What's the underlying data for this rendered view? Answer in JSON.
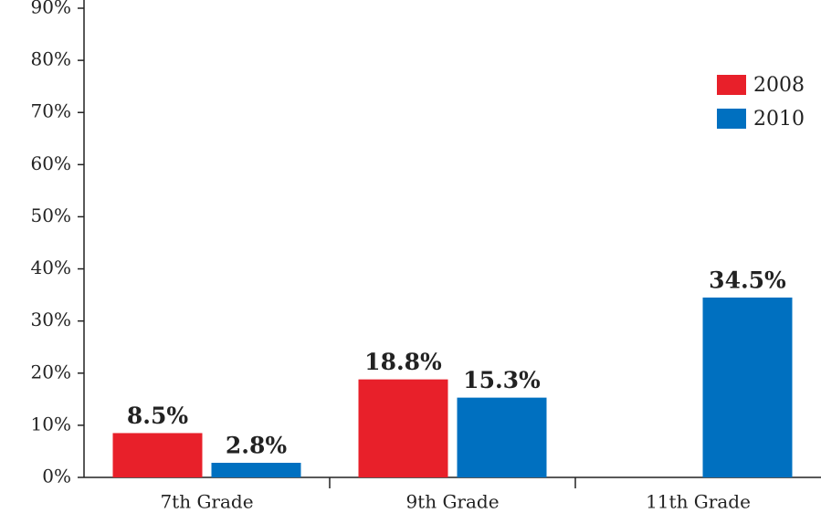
{
  "chart_data": {
    "type": "bar",
    "categories": [
      "7th Grade",
      "9th Grade",
      "11th Grade"
    ],
    "series": [
      {
        "name": "2008",
        "color": "#e8202a",
        "values": [
          8.5,
          18.8,
          null
        ],
        "value_labels": [
          "8.5%",
          "18.8%",
          null
        ]
      },
      {
        "name": "2010",
        "color": "#0070c0",
        "values": [
          2.8,
          15.3,
          34.5
        ],
        "value_labels": [
          "2.8%",
          "15.3%",
          "34.5%"
        ]
      }
    ],
    "ylim": [
      0,
      90
    ],
    "yticks": [
      {
        "value": 0,
        "label": "0%"
      },
      {
        "value": 10,
        "label": "10%"
      },
      {
        "value": 20,
        "label": "20%"
      },
      {
        "value": 30,
        "label": "30%"
      },
      {
        "value": 40,
        "label": "40%"
      },
      {
        "value": 50,
        "label": "50%"
      },
      {
        "value": 60,
        "label": "60%"
      },
      {
        "value": 70,
        "label": "70%"
      },
      {
        "value": 80,
        "label": "80%"
      },
      {
        "value": 90,
        "label": "90%"
      }
    ],
    "legend": "upper right"
  }
}
